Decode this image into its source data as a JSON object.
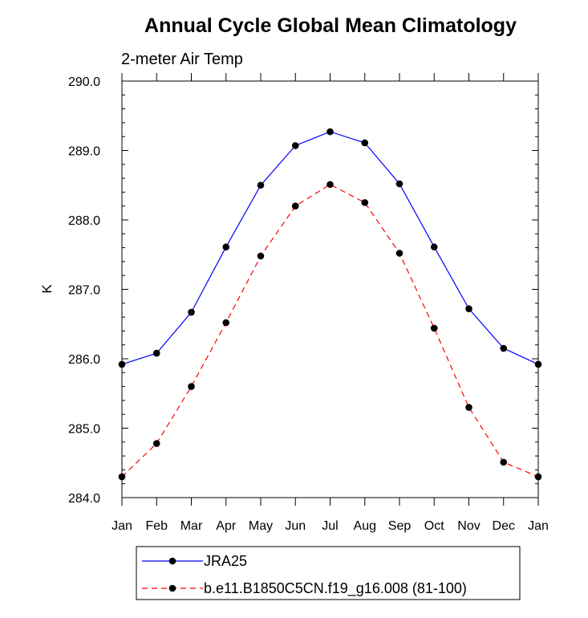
{
  "chart_data": {
    "type": "line",
    "title": "Annual Cycle Global Mean Climatology",
    "subtitle": "2-meter Air Temp",
    "xlabel": "",
    "ylabel": "K",
    "categories": [
      "Jan",
      "Feb",
      "Mar",
      "Apr",
      "May",
      "Jun",
      "Jul",
      "Aug",
      "Sep",
      "Oct",
      "Nov",
      "Dec",
      "Jan"
    ],
    "ylim": [
      284.0,
      290.0
    ],
    "y_ticks": [
      "284.0",
      "285.0",
      "286.0",
      "287.0",
      "288.0",
      "289.0",
      "290.0"
    ],
    "y_minor_step": 0.2,
    "grid": false,
    "legend_position": "bottom",
    "series": [
      {
        "name": "JRA25",
        "color": "#0000ff",
        "line_style": "solid",
        "marker": "filled-circle",
        "values": [
          285.92,
          286.08,
          286.67,
          287.61,
          288.5,
          289.07,
          289.27,
          289.11,
          288.52,
          287.61,
          286.72,
          286.15,
          285.92
        ]
      },
      {
        "name": "b.e11.B1850C5CN.f19_g16.008 (81-100)",
        "color": "#ff0000",
        "line_style": "dashed",
        "marker": "filled-circle",
        "values": [
          284.3,
          284.78,
          285.6,
          286.52,
          287.48,
          288.2,
          288.51,
          288.25,
          287.52,
          286.44,
          285.3,
          284.51,
          284.3
        ]
      }
    ]
  }
}
